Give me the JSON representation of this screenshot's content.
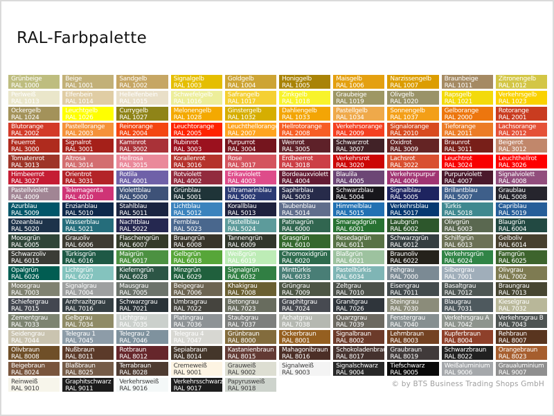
{
  "page": {
    "title": "RAL-Farbpalette",
    "copyright": "© by BTS Business Trading Shops GmbH",
    "background": "#FFFFFF",
    "border_color": "#DADADA"
  },
  "palette": {
    "columns": 10,
    "text_color_light": "#FFFFFF",
    "text_color_dark": "#3C3C3C",
    "colors": [
      {
        "name": "Grünbeige",
        "code": "RAL 1000",
        "hex": "#BEBD7F"
      },
      {
        "name": "Beige",
        "code": "RAL 1001",
        "hex": "#C2B078"
      },
      {
        "name": "Sandgelb",
        "code": "RAL 1002",
        "hex": "#C6A664"
      },
      {
        "name": "Signalgelb",
        "code": "RAL 1003",
        "hex": "#E5BE01"
      },
      {
        "name": "Goldgelb",
        "code": "RAL 1004",
        "hex": "#CDA434"
      },
      {
        "name": "Honiggelb",
        "code": "RAL 1005",
        "hex": "#A98307"
      },
      {
        "name": "Maisgelb",
        "code": "RAL 1006",
        "hex": "#E4A010"
      },
      {
        "name": "Narzissengelb",
        "code": "RAL 1007",
        "hex": "#DC9D00"
      },
      {
        "name": "Braunbeige",
        "code": "RAL 1011",
        "hex": "#A58A63"
      },
      {
        "name": "Zitronengelb",
        "code": "RAL 1012",
        "hex": "#D3C645"
      },
      {
        "name": "Perlweiß",
        "code": "RAL 1013",
        "hex": "#EAE6CA"
      },
      {
        "name": "Elfenbein",
        "code": "RAL 1014",
        "hex": "#E0CDA4"
      },
      {
        "name": "Hellelfenbein",
        "code": "RAL 1015",
        "hex": "#E9DFC8"
      },
      {
        "name": "Schwefelgelb",
        "code": "RAL 1016",
        "hex": "#EDEE9A"
      },
      {
        "name": "Safrangelb",
        "code": "RAL 1017",
        "hex": "#F5D033"
      },
      {
        "name": "Zinkgelb",
        "code": "RAL 1018",
        "hex": "#F8F32B"
      },
      {
        "name": "Graubeige",
        "code": "RAL 1019",
        "hex": "#9E9764"
      },
      {
        "name": "Olivgelb",
        "code": "RAL 1020",
        "hex": "#9A9368"
      },
      {
        "name": "Rapsgelb",
        "code": "RAL 1021",
        "hex": "#F3DA0B"
      },
      {
        "name": "Verkehrsgelb",
        "code": "RAL 1023",
        "hex": "#FAD201"
      },
      {
        "name": "Ockergelb",
        "code": "RAL 1024",
        "hex": "#A3925A"
      },
      {
        "name": "Leuchtgelb",
        "code": "RAL 1026",
        "hex": "#FFFF00"
      },
      {
        "name": "Currygelb",
        "code": "RAL 1027",
        "hex": "#8F8418"
      },
      {
        "name": "Melonengelb",
        "code": "RAL 1028",
        "hex": "#F4A900"
      },
      {
        "name": "Ginstergelb",
        "code": "RAL 1032",
        "hex": "#D6AE01"
      },
      {
        "name": "Dahliengelb",
        "code": "RAL 1033",
        "hex": "#F3A505"
      },
      {
        "name": "Pastellgelb",
        "code": "RAL 1034",
        "hex": "#EFA94A"
      },
      {
        "name": "Sonnengelb",
        "code": "RAL 1037",
        "hex": "#F39F18"
      },
      {
        "name": "Gelborange",
        "code": "RAL 2000",
        "hex": "#ED760E"
      },
      {
        "name": "Rotorange",
        "code": "RAL 2001",
        "hex": "#C93C20"
      },
      {
        "name": "Blutorange",
        "code": "RAL 2002",
        "hex": "#D33A28"
      },
      {
        "name": "Pastellorange",
        "code": "RAL 2003",
        "hex": "#F5923A"
      },
      {
        "name": "Reinorange",
        "code": "RAL 2004",
        "hex": "#F44611"
      },
      {
        "name": "Leuchtorange",
        "code": "RAL 2005",
        "hex": "#FF2301"
      },
      {
        "name": "Leuchthellorange",
        "code": "RAL 2007",
        "hex": "#FFA420"
      },
      {
        "name": "Hellrotorange",
        "code": "RAL 2008",
        "hex": "#F75E25"
      },
      {
        "name": "Verkehrsorange",
        "code": "RAL 2009",
        "hex": "#F54021"
      },
      {
        "name": "Signalorange",
        "code": "RAL 2010",
        "hex": "#D84B20"
      },
      {
        "name": "Tieforange",
        "code": "RAL 2011",
        "hex": "#EC7C26"
      },
      {
        "name": "Lachsorange",
        "code": "RAL 2012",
        "hex": "#E55137"
      },
      {
        "name": "Feuerrot",
        "code": "RAL 3000",
        "hex": "#AF2B1E"
      },
      {
        "name": "Signalrot",
        "code": "RAL 3001",
        "hex": "#A52019"
      },
      {
        "name": "Kaminrot",
        "code": "RAL 3002",
        "hex": "#A93238"
      },
      {
        "name": "Rubinrot",
        "code": "RAL 3003",
        "hex": "#9B111E"
      },
      {
        "name": "Purpurrot",
        "code": "RAL 3004",
        "hex": "#75151E"
      },
      {
        "name": "Weinrot",
        "code": "RAL 3005",
        "hex": "#5E2129"
      },
      {
        "name": "Schwarzrot",
        "code": "RAL 3007",
        "hex": "#412227"
      },
      {
        "name": "Oxidrot",
        "code": "RAL 3009",
        "hex": "#642424"
      },
      {
        "name": "Braunrot",
        "code": "RAL 3011",
        "hex": "#781F19"
      },
      {
        "name": "Beigerot",
        "code": "RAL 3012",
        "hex": "#C1876B"
      },
      {
        "name": "Tomatenrot",
        "code": "RAL 3013",
        "hex": "#9E3528"
      },
      {
        "name": "Altrosa",
        "code": "RAL 3014",
        "hex": "#D36E70"
      },
      {
        "name": "Hellrosa",
        "code": "RAL 3015",
        "hex": "#EA899A"
      },
      {
        "name": "Korallenrot",
        "code": "RAL 3016",
        "hex": "#B5332C"
      },
      {
        "name": "Rose",
        "code": "RAL 3017",
        "hex": "#D4545E"
      },
      {
        "name": "Erdbeerrot",
        "code": "RAL 3018",
        "hex": "#CC3F46"
      },
      {
        "name": "Verkehrsrot",
        "code": "RAL 3020",
        "hex": "#CC0605"
      },
      {
        "name": "Lachsrot",
        "code": "RAL 3022",
        "hex": "#D95030"
      },
      {
        "name": "Leuchtrot",
        "code": "RAL 3024",
        "hex": "#F80000"
      },
      {
        "name": "Leuchthellrot",
        "code": "RAL 3026",
        "hex": "#FE0000"
      },
      {
        "name": "Himbeerrot",
        "code": "RAL 3027",
        "hex": "#C51D34"
      },
      {
        "name": "Orientrot",
        "code": "RAL 3031",
        "hex": "#B32428"
      },
      {
        "name": "Rotlila",
        "code": "RAL 4001",
        "hex": "#6F61A8"
      },
      {
        "name": "Rotviolett",
        "code": "RAL 4002",
        "hex": "#922B3E"
      },
      {
        "name": "Erikaviolett",
        "code": "RAL 4003",
        "hex": "#DE4C8A"
      },
      {
        "name": "Bordeauxviolett",
        "code": "RAL 4004",
        "hex": "#641C34"
      },
      {
        "name": "Blaulila",
        "code": "RAL 4005",
        "hex": "#6C4675"
      },
      {
        "name": "Verkehrspurpur",
        "code": "RAL 4006",
        "hex": "#A03472"
      },
      {
        "name": "Purpurviolett",
        "code": "RAL 4007",
        "hex": "#4A192C"
      },
      {
        "name": "Signalviolett",
        "code": "RAL 4008",
        "hex": "#924E7D"
      },
      {
        "name": "Pastellviolett",
        "code": "RAL 4009",
        "hex": "#A18594"
      },
      {
        "name": "Telemagenta",
        "code": "RAL 4010",
        "hex": "#CF3476"
      },
      {
        "name": "Violettblau",
        "code": "RAL 5000",
        "hex": "#3E5278"
      },
      {
        "name": "Grünblau",
        "code": "RAL 5001",
        "hex": "#1F3438"
      },
      {
        "name": "Ultramarinblau",
        "code": "RAL 5002",
        "hex": "#2B3A73"
      },
      {
        "name": "Saphirblau",
        "code": "RAL 5003",
        "hex": "#272B4A"
      },
      {
        "name": "Schwarzblau",
        "code": "RAL 5004",
        "hex": "#18171C"
      },
      {
        "name": "Signalblau",
        "code": "RAL 5005",
        "hex": "#1E2460"
      },
      {
        "name": "Brillantblau",
        "code": "RAL 5007",
        "hex": "#3E5F8A"
      },
      {
        "name": "Graublau",
        "code": "RAL 5008",
        "hex": "#26252D"
      },
      {
        "name": "Azurblau",
        "code": "RAL 5009",
        "hex": "#025669"
      },
      {
        "name": "Enzianblau",
        "code": "RAL 5010",
        "hex": "#0E294B"
      },
      {
        "name": "Stahlblau",
        "code": "RAL 5011",
        "hex": "#1B2541"
      },
      {
        "name": "Lichtblau",
        "code": "RAL 5012",
        "hex": "#3B83BD"
      },
      {
        "name": "Korallblau",
        "code": "RAL 5013",
        "hex": "#1E213D"
      },
      {
        "name": "Taubenblau",
        "code": "RAL 5014",
        "hex": "#606E8C"
      },
      {
        "name": "Himmelblau",
        "code": "RAL 5015",
        "hex": "#2271B3"
      },
      {
        "name": "Verkehrsblau",
        "code": "RAL 5017",
        "hex": "#063971"
      },
      {
        "name": "Türkis",
        "code": "RAL 5018",
        "hex": "#3F888F"
      },
      {
        "name": "Capriblau",
        "code": "RAL 5019",
        "hex": "#265E99"
      },
      {
        "name": "Ozeanblau",
        "code": "RAL 5020",
        "hex": "#1D334A"
      },
      {
        "name": "Wasserblau",
        "code": "RAL 5021",
        "hex": "#256D7B"
      },
      {
        "name": "Nachtblau",
        "code": "RAL 5022",
        "hex": "#252850"
      },
      {
        "name": "Fernblau",
        "code": "RAL 5023",
        "hex": "#49678D"
      },
      {
        "name": "Pastellblau",
        "code": "RAL 5024",
        "hex": "#5D9B9B"
      },
      {
        "name": "Patinagrün",
        "code": "RAL 6000",
        "hex": "#316650"
      },
      {
        "name": "Smaragdgrün",
        "code": "RAL 6001",
        "hex": "#287233"
      },
      {
        "name": "Laubgrün",
        "code": "RAL 6002",
        "hex": "#2D572C"
      },
      {
        "name": "Olivgrün",
        "code": "RAL 6003",
        "hex": "#5A6850"
      },
      {
        "name": "Blaugrün",
        "code": "RAL 6004",
        "hex": "#224942"
      },
      {
        "name": "Moosgrün",
        "code": "RAL 6005",
        "hex": "#2F4538"
      },
      {
        "name": "Grauoliv",
        "code": "RAL 6006",
        "hex": "#3E3B32"
      },
      {
        "name": "Flaschengrün",
        "code": "RAL 6007",
        "hex": "#343B29"
      },
      {
        "name": "Braungrün",
        "code": "RAL 6008",
        "hex": "#39352A"
      },
      {
        "name": "Tannengrün",
        "code": "RAL 6009",
        "hex": "#31372B"
      },
      {
        "name": "Grasgrün",
        "code": "RAL 6010",
        "hex": "#35682D"
      },
      {
        "name": "Resedagrün",
        "code": "RAL 6011",
        "hex": "#587246"
      },
      {
        "name": "Schwarzgrün",
        "code": "RAL 6012",
        "hex": "#343E40"
      },
      {
        "name": "Schilfgrün",
        "code": "RAL 6013",
        "hex": "#6C7156"
      },
      {
        "name": "Gelboliv",
        "code": "RAL 6014",
        "hex": "#47402E"
      },
      {
        "name": "Schwarzoliv",
        "code": "RAL 6015",
        "hex": "#3B3C36"
      },
      {
        "name": "Türkisgrün",
        "code": "RAL 6016",
        "hex": "#1E5945"
      },
      {
        "name": "Maigrün",
        "code": "RAL 6017",
        "hex": "#4C9141"
      },
      {
        "name": "Gelbgrün",
        "code": "RAL 6018",
        "hex": "#57A639"
      },
      {
        "name": "Weißgrün",
        "code": "RAL 6019",
        "hex": "#BDECB6"
      },
      {
        "name": "Chromoxidgrün",
        "code": "RAL 6020",
        "hex": "#2E6B4E"
      },
      {
        "name": "Blaßgrün",
        "code": "RAL 6021",
        "hex": "#9DC29F"
      },
      {
        "name": "Braunoliv",
        "code": "RAL 6022",
        "hex": "#25221B"
      },
      {
        "name": "Verkehrsgrün",
        "code": "RAL 6024",
        "hex": "#308446"
      },
      {
        "name": "Farngrün",
        "code": "RAL 6025",
        "hex": "#3D642D"
      },
      {
        "name": "Opalgrün",
        "code": "RAL 6026",
        "hex": "#015D52"
      },
      {
        "name": "Lichtgrün",
        "code": "RAL 6027",
        "hex": "#84C3BE"
      },
      {
        "name": "Kieferngrün",
        "code": "RAL 6028",
        "hex": "#2C5545"
      },
      {
        "name": "Minzgrün",
        "code": "RAL 6029",
        "hex": "#20603D"
      },
      {
        "name": "Signalgrün",
        "code": "RAL 6032",
        "hex": "#317F43"
      },
      {
        "name": "Minttürkis",
        "code": "RAL 6033",
        "hex": "#497E76"
      },
      {
        "name": "Pastelltürkis",
        "code": "RAL 6034",
        "hex": "#7FB5B5"
      },
      {
        "name": "Fehgrau",
        "code": "RAL 7000",
        "hex": "#7B8A94"
      },
      {
        "name": "Silbergrau",
        "code": "RAL 7001",
        "hex": "#A0AEBA"
      },
      {
        "name": "Olivgrau",
        "code": "RAL 7002",
        "hex": "#7E7B52"
      },
      {
        "name": "Moosgrau",
        "code": "RAL 7003",
        "hex": "#808271"
      },
      {
        "name": "Signalgrau",
        "code": "RAL 7004",
        "hex": "#9EA0A0"
      },
      {
        "name": "Mausgrau",
        "code": "RAL 7005",
        "hex": "#6C736B"
      },
      {
        "name": "Beigegrau",
        "code": "RAL 7006",
        "hex": "#6D6552"
      },
      {
        "name": "Khakigrau",
        "code": "RAL 7008",
        "hex": "#6A5F31"
      },
      {
        "name": "Grüngrau",
        "code": "RAL 7009",
        "hex": "#4D5645"
      },
      {
        "name": "Zeltgrau",
        "code": "RAL 7010",
        "hex": "#4C514A"
      },
      {
        "name": "Eisengrau",
        "code": "RAL 7011",
        "hex": "#434B4D"
      },
      {
        "name": "Basaltgrau",
        "code": "RAL 7012",
        "hex": "#4E5754"
      },
      {
        "name": "Braungrau",
        "code": "RAL 7013",
        "hex": "#464531"
      },
      {
        "name": "Schiefergrau",
        "code": "RAL 7015",
        "hex": "#434750"
      },
      {
        "name": "Anthrazitgrau",
        "code": "RAL 7016",
        "hex": "#353F43"
      },
      {
        "name": "Schwarzgrau",
        "code": "RAL 7021",
        "hex": "#2A3338"
      },
      {
        "name": "Umbragrau",
        "code": "RAL 7022",
        "hex": "#45443E"
      },
      {
        "name": "Betongrau",
        "code": "RAL 7023",
        "hex": "#686C5E"
      },
      {
        "name": "Graphitgrau",
        "code": "RAL 7024",
        "hex": "#474A51"
      },
      {
        "name": "Granitgrau",
        "code": "RAL 7026",
        "hex": "#2F353B"
      },
      {
        "name": "Steingrau",
        "code": "RAL 7030",
        "hex": "#8B8C7A"
      },
      {
        "name": "Blaugrau",
        "code": "RAL 7031",
        "hex": "#4E595E"
      },
      {
        "name": "Kieselgrau",
        "code": "RAL 7032",
        "hex": "#B8B799"
      },
      {
        "name": "Zementgrau",
        "code": "RAL 7033",
        "hex": "#7D8471"
      },
      {
        "name": "Gelbgrau",
        "code": "RAL 7034",
        "hex": "#8F8B66"
      },
      {
        "name": "Lichtgrau",
        "code": "RAL 7035",
        "hex": "#CBD0CC"
      },
      {
        "name": "Platingrau",
        "code": "RAL 7036",
        "hex": "#8E9396"
      },
      {
        "name": "Staubgrau",
        "code": "RAL 7037",
        "hex": "#7D7F7D"
      },
      {
        "name": "Achatgrau",
        "code": "RAL 7038",
        "hex": "#B5B8B1"
      },
      {
        "name": "Quarzgrau",
        "code": "RAL 7039",
        "hex": "#6C6960"
      },
      {
        "name": "Fenstergrau",
        "code": "RAL 7040",
        "hex": "#868F90"
      },
      {
        "name": "Verkehrsgrau A",
        "code": "RAL 7042",
        "hex": "#8D948D"
      },
      {
        "name": "Verkehrsgrau B",
        "code": "RAL 7043",
        "hex": "#4E5452"
      },
      {
        "name": "Seidengrau",
        "code": "RAL 7044",
        "hex": "#CAC4B0"
      },
      {
        "name": "Telegrau 1",
        "code": "RAL 7045",
        "hex": "#8D9CA8"
      },
      {
        "name": "Telegrau 2",
        "code": "RAL 7046",
        "hex": "#7F929E"
      },
      {
        "name": "Telegrau 4",
        "code": "RAL 7047",
        "hex": "#D7D7D2"
      },
      {
        "name": "Grünbraun",
        "code": "RAL 8000",
        "hex": "#836C3D"
      },
      {
        "name": "Ockerbraun",
        "code": "RAL 8001",
        "hex": "#955F20"
      },
      {
        "name": "Signalbraun",
        "code": "RAL 8002",
        "hex": "#6C3B2A"
      },
      {
        "name": "Lehmbraun",
        "code": "RAL 8003",
        "hex": "#734222"
      },
      {
        "name": "Kupferbraun",
        "code": "RAL 8004",
        "hex": "#8E402A"
      },
      {
        "name": "Rehbraun",
        "code": "RAL 8007",
        "hex": "#59351F"
      },
      {
        "name": "Olivbraun",
        "code": "RAL 8008",
        "hex": "#6F4F28"
      },
      {
        "name": "Nußbraun",
        "code": "RAL 8011",
        "hex": "#5B3A29"
      },
      {
        "name": "Rotbraun",
        "code": "RAL 8012",
        "hex": "#66262B"
      },
      {
        "name": "Sepiabraun",
        "code": "RAL 8014",
        "hex": "#44362A"
      },
      {
        "name": "Kastanienbraun",
        "code": "RAL 8015",
        "hex": "#633A34"
      },
      {
        "name": "Mahagonibraun",
        "code": "RAL 8016",
        "hex": "#4C2F27"
      },
      {
        "name": "Schokoladenbraun",
        "code": "RAL 8017",
        "hex": "#45322E"
      },
      {
        "name": "Graubraun",
        "code": "RAL 8019",
        "hex": "#403A3A"
      },
      {
        "name": "Schwarzbraun",
        "code": "RAL 8022",
        "hex": "#212121"
      },
      {
        "name": "Orangebraun",
        "code": "RAL 8023",
        "hex": "#A65E2E"
      },
      {
        "name": "Beigebraun",
        "code": "RAL 8024",
        "hex": "#79553D"
      },
      {
        "name": "Blaßbraun",
        "code": "RAL 8025",
        "hex": "#755C48"
      },
      {
        "name": "Terrabraun",
        "code": "RAL 8028",
        "hex": "#4E3B31"
      },
      {
        "name": "Cremeweiß",
        "code": "RAL 9001",
        "hex": "#FDF4E3",
        "dark": true
      },
      {
        "name": "Grauweiß",
        "code": "RAL 9002",
        "hex": "#DDDED2",
        "dark": true
      },
      {
        "name": "Signalweiß",
        "code": "RAL 9003",
        "hex": "#F4F4F4",
        "dark": true
      },
      {
        "name": "Signalschwarz",
        "code": "RAL 9004",
        "hex": "#282828"
      },
      {
        "name": "Tiefschwarz",
        "code": "RAL 9005",
        "hex": "#0A0A0A"
      },
      {
        "name": "Weißaluminium",
        "code": "RAL 9006",
        "hex": "#A5A8AB"
      },
      {
        "name": "Graualuminium",
        "code": "RAL 9007",
        "hex": "#8F8F8F"
      },
      {
        "name": "Reinweiß",
        "code": "RAL 9010",
        "hex": "#F7F5EB",
        "dark": true
      },
      {
        "name": "Graphitschwarz",
        "code": "RAL 9011",
        "hex": "#1C1C1C"
      },
      {
        "name": "Verkehrsweiß",
        "code": "RAL 9016",
        "hex": "#F4F8F8",
        "dark": true
      },
      {
        "name": "Verkehrsschwarz",
        "code": "RAL 9017",
        "hex": "#1E1E1E"
      },
      {
        "name": "Papyrusweiß",
        "code": "RAL 9018",
        "hex": "#CDD3CC",
        "dark": true
      }
    ]
  }
}
